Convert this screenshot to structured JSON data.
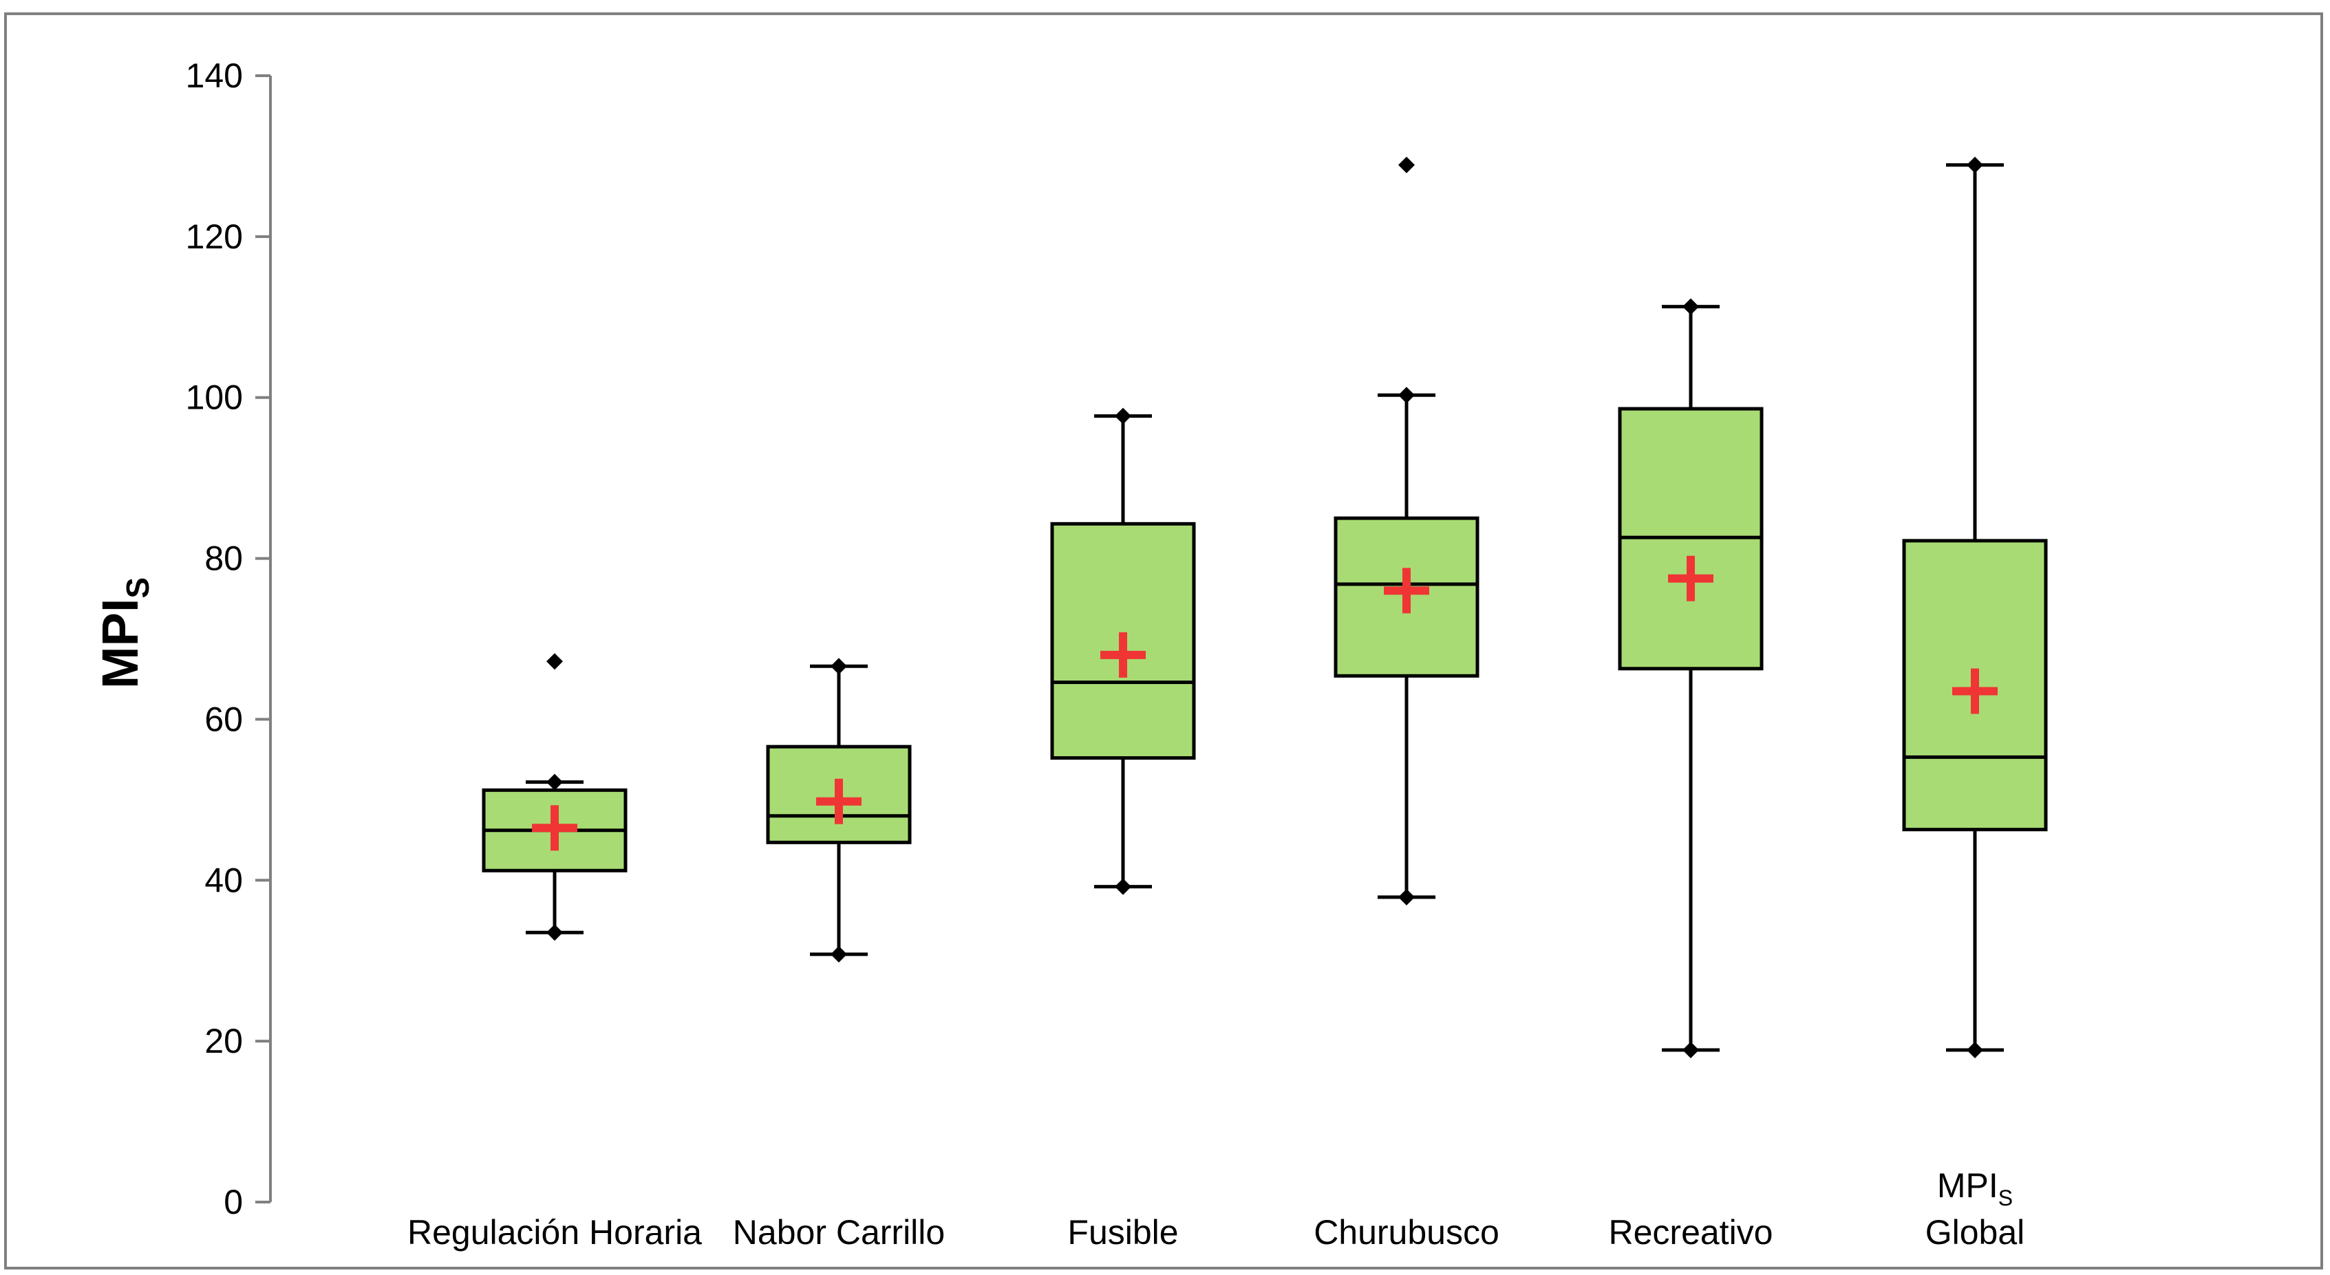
{
  "chart_data": {
    "type": "box",
    "title": "",
    "xlabel": "",
    "ylabel": "MPI",
    "ylabel_subscript": "S",
    "ylim": [
      0,
      140
    ],
    "yticks": [
      0,
      20,
      40,
      60,
      80,
      100,
      120,
      140
    ],
    "grid": false,
    "legend": "none",
    "colors": {
      "box_fill": "#a9db74",
      "box_stroke": "#000000",
      "mean_marker": "#f03535",
      "outlier": "#000000",
      "axis": "#808080",
      "frame": "#808080"
    },
    "categories": [
      {
        "label": "Regulación Horaria",
        "sub": ""
      },
      {
        "label": "Nabor Carrillo",
        "sub": ""
      },
      {
        "label": "Fusible",
        "sub": ""
      },
      {
        "label": "Churubusco",
        "sub": ""
      },
      {
        "label": "Recreativo",
        "sub": ""
      },
      {
        "label": "MPI",
        "sub": "S",
        "label2": "Global"
      }
    ],
    "series": [
      {
        "name": "Regulación Horaria",
        "min": 33.5,
        "q1": 41.2,
        "median": 46.2,
        "q3": 51.2,
        "max": 52.2,
        "mean": 46.5,
        "outliers": [
          67.2
        ]
      },
      {
        "name": "Nabor Carrillo",
        "min": 30.8,
        "q1": 44.7,
        "median": 48.0,
        "q3": 56.6,
        "max": 66.6,
        "mean": 49.8,
        "outliers": []
      },
      {
        "name": "Fusible",
        "min": 39.2,
        "q1": 55.2,
        "median": 64.6,
        "q3": 84.3,
        "max": 97.7,
        "mean": 68.0,
        "outliers": []
      },
      {
        "name": "Churubusco",
        "min": 37.9,
        "q1": 65.4,
        "median": 76.8,
        "q3": 85.0,
        "max": 100.3,
        "mean": 76.0,
        "outliers": [
          128.9
        ]
      },
      {
        "name": "Recreativo",
        "min": 18.9,
        "q1": 66.3,
        "median": 82.6,
        "q3": 98.6,
        "max": 111.3,
        "mean": 77.5,
        "outliers": []
      },
      {
        "name": "MPI_S Global",
        "min": 18.9,
        "q1": 46.3,
        "median": 55.3,
        "q3": 82.2,
        "max": 128.9,
        "mean": 63.5,
        "outliers": []
      }
    ]
  }
}
